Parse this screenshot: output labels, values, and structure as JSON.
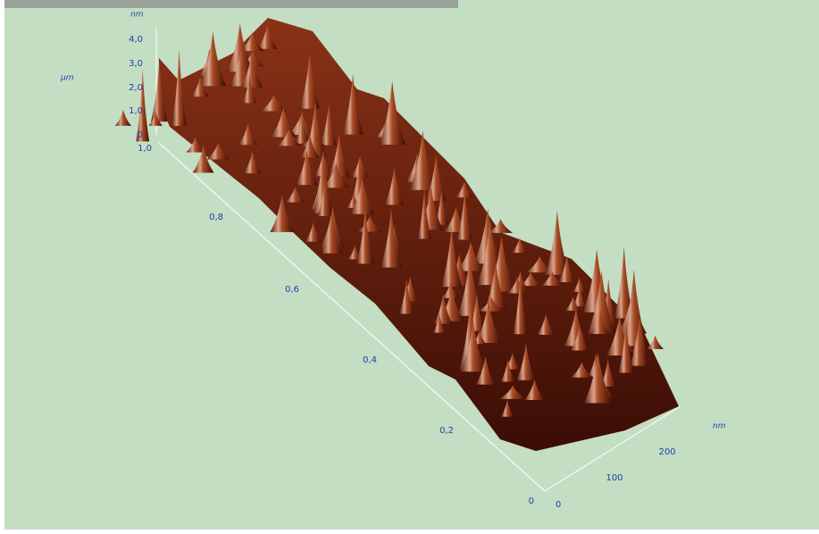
{
  "z_axis": {
    "unit": "nm",
    "ticks": [
      "4,0",
      "3,0",
      "2,0",
      "1,0",
      "0"
    ]
  },
  "y_axis": {
    "unit": "µm",
    "ticks": [
      "1,0",
      "0,8",
      "0,6",
      "0,4",
      "0,2",
      "0"
    ]
  },
  "x_axis": {
    "unit": "nm",
    "ticks": [
      "0",
      "100",
      "200"
    ]
  }
}
